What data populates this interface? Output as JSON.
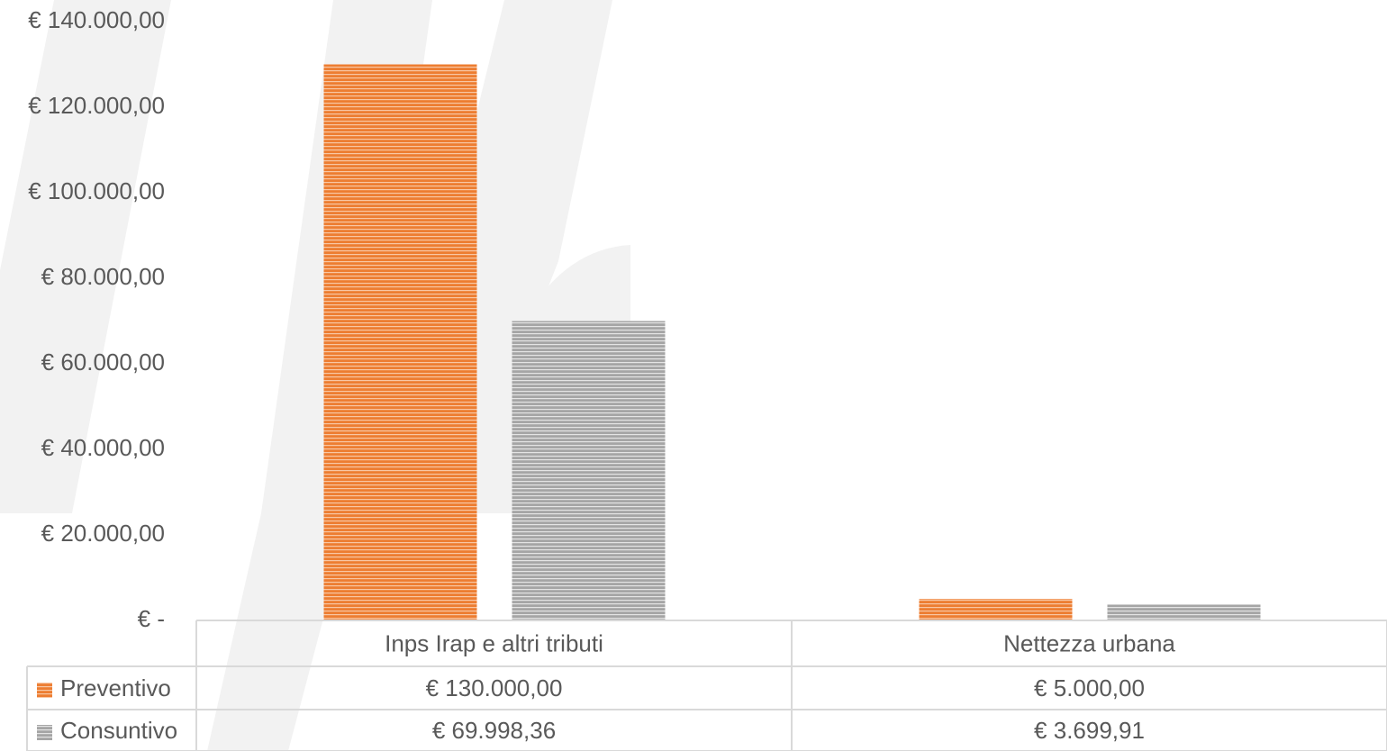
{
  "chart_data": {
    "type": "bar",
    "categories": [
      "Inps Irap e altri tributi",
      "Nettezza urbana"
    ],
    "series": [
      {
        "name": "Preventivo",
        "color": "#ed7d31",
        "values": [
          130000,
          5000
        ],
        "value_labels": [
          "€ 130.000,00",
          "€ 5.000,00"
        ]
      },
      {
        "name": "Consuntivo",
        "color": "#a5a5a5",
        "values": [
          69998.36,
          3699.91
        ],
        "value_labels": [
          "€ 69.998,36",
          "€ 3.699,91"
        ]
      }
    ],
    "ylim": [
      0,
      140000
    ],
    "yticks": [
      {
        "value": 0,
        "label": "€ -"
      },
      {
        "value": 20000,
        "label": "€ 20.000,00"
      },
      {
        "value": 40000,
        "label": "€ 40.000,00"
      },
      {
        "value": 60000,
        "label": "€ 60.000,00"
      },
      {
        "value": 80000,
        "label": "€ 80.000,00"
      },
      {
        "value": 100000,
        "label": "€ 100.000,00"
      },
      {
        "value": 120000,
        "label": "€ 120.000,00"
      },
      {
        "value": 140000,
        "label": "€ 140.000,00"
      }
    ],
    "grid": false
  }
}
